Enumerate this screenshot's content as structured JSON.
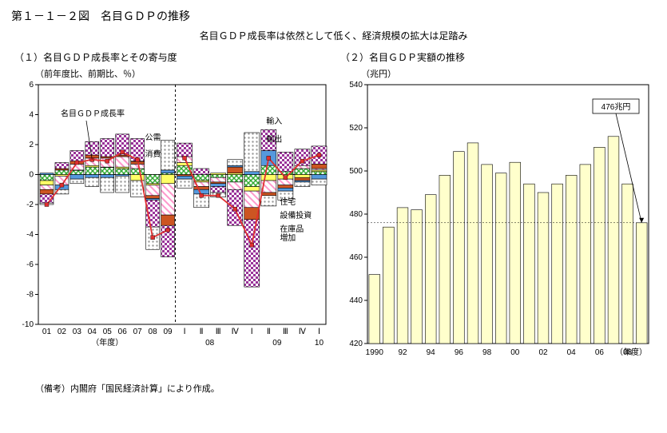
{
  "figure_title": "第１－１－２図　名目ＧＤＰの推移",
  "subtitle": "名目ＧＤＰ成長率は依然として低く、経済規模の拡大は足踏み",
  "note": "（備考）内閣府「国民経済計算」により作成。",
  "left": {
    "title": "（１）名目ＧＤＰ成長率とその寄与度",
    "axis_label": "（前年度比、前期比、％）",
    "y": {
      "min": -10,
      "max": 6,
      "step": 2
    },
    "years": [
      "01",
      "02",
      "03",
      "04",
      "05",
      "06",
      "07",
      "08",
      "09"
    ],
    "q08": [
      "Ⅰ",
      "Ⅱ",
      "Ⅲ",
      "Ⅳ"
    ],
    "q09": [
      "Ⅰ",
      "Ⅱ",
      "Ⅲ",
      "Ⅳ"
    ],
    "q10": [
      "Ⅰ"
    ],
    "x_period_label": "（期)",
    "x_year_label": "（年）",
    "x_fy_label": "（年度）",
    "q_group_08": "08",
    "q_group_09": "09",
    "q_group_10": "10",
    "patterns": {
      "consumption": {
        "id": "pat-cons",
        "fill": "#33aa33",
        "type": "cross"
      },
      "housing": {
        "id": "pat-hous",
        "fill": "#ffff66",
        "type": "solid"
      },
      "capex": {
        "id": "pat-capex",
        "fill": "#ff99cc",
        "type": "diag"
      },
      "inventory": {
        "id": "pat-inv",
        "fill": "#cc5522",
        "type": "solid"
      },
      "gov": {
        "id": "pat-gov",
        "fill": "#5599dd",
        "type": "solid"
      },
      "exports": {
        "id": "pat-exp",
        "fill": "#993399",
        "type": "check"
      },
      "imports": {
        "id": "pat-imp",
        "fill": "#999999",
        "type": "dot"
      }
    },
    "line_color": "#e03030",
    "stacks_fy": [
      {
        "label": "01",
        "cons": -0.4,
        "hous": -0.3,
        "capex": -0.3,
        "inv": -0.3,
        "gov": 0.1,
        "exp": -0.6,
        "imp": -0.1
      },
      {
        "label": "02",
        "cons": 0.3,
        "hous": -0.1,
        "capex": -0.6,
        "inv": 0.1,
        "gov": -0.3,
        "exp": 0.4,
        "imp": -0.3
      },
      {
        "label": "03",
        "cons": 0.3,
        "hous": 0.0,
        "capex": 0.4,
        "inv": 0.2,
        "gov": -0.3,
        "exp": 0.7,
        "imp": -0.3
      },
      {
        "label": "04",
        "cons": 0.5,
        "hous": 0.1,
        "capex": 0.5,
        "inv": 0.2,
        "gov": -0.2,
        "exp": 0.9,
        "imp": -0.6
      },
      {
        "label": "05",
        "cons": 0.5,
        "hous": 0.0,
        "capex": 0.6,
        "inv": 0.1,
        "gov": -0.2,
        "exp": 1.2,
        "imp": -1.0
      },
      {
        "label": "06",
        "cons": 0.4,
        "hous": 0.1,
        "capex": 0.7,
        "inv": 0.1,
        "gov": -0.1,
        "exp": 1.4,
        "imp": -1.1
      },
      {
        "label": "07",
        "cons": 0.4,
        "hous": -0.4,
        "capex": 0.3,
        "inv": 0.2,
        "gov": 0.0,
        "exp": 1.5,
        "imp": -1.1
      },
      {
        "label": "08",
        "cons": -0.6,
        "hous": -0.1,
        "capex": -0.7,
        "inv": -0.2,
        "gov": -0.1,
        "exp": -1.8,
        "imp": -1.5
      },
      {
        "label": "09",
        "cons": 0.1,
        "hous": -0.6,
        "capex": -2.1,
        "inv": -0.7,
        "gov": 0.2,
        "exp": -2.1,
        "imp": 2.0
      }
    ],
    "stacks_q": [
      {
        "label": "08Ⅰ",
        "cons": 0.6,
        "hous": 0.2,
        "capex": 0.4,
        "inv": -0.1,
        "gov": -0.2,
        "exp": 0.9,
        "imp": -0.6
      },
      {
        "label": "08Ⅱ",
        "cons": -0.4,
        "hous": -0.1,
        "capex": -0.3,
        "inv": -0.2,
        "gov": -0.3,
        "exp": 0.4,
        "imp": -0.9
      },
      {
        "label": "08Ⅲ",
        "cons": -0.2,
        "hous": 0.1,
        "capex": -0.3,
        "inv": -0.1,
        "gov": -0.2,
        "exp": -0.4,
        "imp": -0.3
      },
      {
        "label": "08Ⅳ",
        "cons": -0.5,
        "hous": 0.1,
        "capex": -0.5,
        "inv": 0.4,
        "gov": 0.1,
        "exp": -2.4,
        "imp": 0.4
      },
      {
        "label": "09Ⅰ",
        "cons": -0.8,
        "hous": -0.3,
        "capex": -1.1,
        "inv": -0.8,
        "gov": 0.2,
        "exp": -4.5,
        "imp": 2.6
      },
      {
        "label": "09Ⅱ",
        "cons": 0.6,
        "hous": -0.4,
        "capex": -0.8,
        "inv": -0.2,
        "gov": 1.0,
        "exp": 1.4,
        "imp": -0.7
      },
      {
        "label": "09Ⅲ",
        "cons": 0.2,
        "hous": -0.3,
        "capex": -0.4,
        "inv": -0.2,
        "gov": -0.2,
        "exp": 1.3,
        "imp": -0.6
      },
      {
        "label": "09Ⅳ",
        "cons": 0.4,
        "hous": -0.2,
        "capex": 0.2,
        "inv": -0.2,
        "gov": -0.1,
        "exp": 1.1,
        "imp": -0.3
      },
      {
        "label": "10Ⅰ",
        "cons": 0.2,
        "hous": 0.1,
        "capex": 0.1,
        "inv": 0.3,
        "gov": -0.3,
        "exp": 1.2,
        "imp": -0.4
      }
    ],
    "gdp_line_fy": [
      -2.0,
      -0.7,
      0.8,
      1.0,
      0.9,
      1.5,
      1.0,
      -4.2,
      -3.7
    ],
    "gdp_line_q": [
      1.1,
      -1.4,
      -1.4,
      -2.3,
      -4.7,
      1.1,
      -0.2,
      0.9,
      1.3
    ],
    "annotations": {
      "gdp_line": "名目ＧＤＰ成長率",
      "consumption": "消費",
      "gov": "公需",
      "exports": "輸出",
      "imports": "輸入",
      "housing": "住宅",
      "capex": "設備投資",
      "inventory": "在庫品増加"
    }
  },
  "right": {
    "title": "（２）名目ＧＤＰ実額の推移",
    "axis_label": "（兆円）",
    "y": {
      "min": 420,
      "max": 540,
      "step": 20
    },
    "x_label": "（年度）",
    "x_ticks": [
      "1990",
      "92",
      "94",
      "96",
      "98",
      "00",
      "02",
      "04",
      "06",
      "08"
    ],
    "bar_fill": "#ffffcc",
    "bar_stroke": "#000000",
    "grid_color": "#000000",
    "callout_label": "476兆円",
    "ref_value": 476,
    "bars": [
      {
        "yr": "1990",
        "v": 452
      },
      {
        "yr": "91",
        "v": 474
      },
      {
        "yr": "92",
        "v": 483
      },
      {
        "yr": "93",
        "v": 482
      },
      {
        "yr": "94",
        "v": 489
      },
      {
        "yr": "95",
        "v": 498
      },
      {
        "yr": "96",
        "v": 509
      },
      {
        "yr": "97",
        "v": 513
      },
      {
        "yr": "98",
        "v": 503
      },
      {
        "yr": "99",
        "v": 499
      },
      {
        "yr": "00",
        "v": 504
      },
      {
        "yr": "01",
        "v": 494
      },
      {
        "yr": "02",
        "v": 490
      },
      {
        "yr": "03",
        "v": 494
      },
      {
        "yr": "04",
        "v": 498
      },
      {
        "yr": "05",
        "v": 503
      },
      {
        "yr": "06",
        "v": 511
      },
      {
        "yr": "07",
        "v": 516
      },
      {
        "yr": "08",
        "v": 494
      },
      {
        "yr": "09",
        "v": 476
      }
    ]
  }
}
